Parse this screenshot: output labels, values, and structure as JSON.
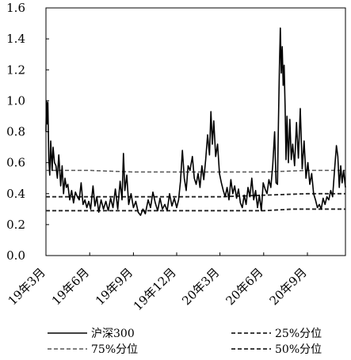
{
  "chart_data": {
    "type": "line",
    "title": "",
    "xlabel": "",
    "ylabel": "",
    "ylim": [
      0,
      1.6
    ],
    "yticks": [
      "0.0",
      "0.2",
      "0.4",
      "0.6",
      "0.8",
      "1.0",
      "1.2",
      "1.4",
      "1.6"
    ],
    "xlim": [
      "2019-03-01",
      "2020-11-20"
    ],
    "xticks": [
      {
        "label": "19年3月",
        "date": "2019-03-01"
      },
      {
        "label": "19年6月",
        "date": "2019-06-01"
      },
      {
        "label": "19年9月",
        "date": "2019-09-01"
      },
      {
        "label": "19年12月",
        "date": "2019-12-01"
      },
      {
        "label": "20年3月",
        "date": "2020-03-01"
      },
      {
        "label": "20年6月",
        "date": "2020-06-01"
      },
      {
        "label": "20年9月",
        "date": "2020-09-01"
      }
    ],
    "grid": false,
    "legend_placement": "bottom",
    "colors": {
      "axis": "#000000",
      "main": "#000000",
      "dashed": "#555555"
    },
    "series": [
      {
        "name": "沪深300",
        "style": "solid",
        "points": [
          [
            "2019-03-01",
            0.8
          ],
          [
            "2019-03-02",
            1.0
          ],
          [
            "2019-03-04",
            0.85
          ],
          [
            "2019-03-05",
            0.99
          ],
          [
            "2019-03-07",
            0.62
          ],
          [
            "2019-03-09",
            0.52
          ],
          [
            "2019-03-11",
            0.74
          ],
          [
            "2019-03-14",
            0.55
          ],
          [
            "2019-03-16",
            0.7
          ],
          [
            "2019-03-19",
            0.6
          ],
          [
            "2019-03-22",
            0.58
          ],
          [
            "2019-03-25",
            0.5
          ],
          [
            "2019-03-28",
            0.65
          ],
          [
            "2019-04-01",
            0.45
          ],
          [
            "2019-04-04",
            0.58
          ],
          [
            "2019-04-07",
            0.4
          ],
          [
            "2019-04-10",
            0.5
          ],
          [
            "2019-04-13",
            0.44
          ],
          [
            "2019-04-16",
            0.46
          ],
          [
            "2019-04-20",
            0.36
          ],
          [
            "2019-04-24",
            0.42
          ],
          [
            "2019-04-28",
            0.34
          ],
          [
            "2019-05-02",
            0.41
          ],
          [
            "2019-05-06",
            0.38
          ],
          [
            "2019-05-10",
            0.36
          ],
          [
            "2019-05-14",
            0.47
          ],
          [
            "2019-05-18",
            0.33
          ],
          [
            "2019-05-22",
            0.36
          ],
          [
            "2019-05-26",
            0.31
          ],
          [
            "2019-05-30",
            0.35
          ],
          [
            "2019-06-03",
            0.3
          ],
          [
            "2019-06-08",
            0.45
          ],
          [
            "2019-06-12",
            0.32
          ],
          [
            "2019-06-16",
            0.38
          ],
          [
            "2019-06-20",
            0.28
          ],
          [
            "2019-06-25",
            0.36
          ],
          [
            "2019-06-30",
            0.3
          ],
          [
            "2019-07-05",
            0.35
          ],
          [
            "2019-07-10",
            0.29
          ],
          [
            "2019-07-15",
            0.37
          ],
          [
            "2019-07-20",
            0.31
          ],
          [
            "2019-07-25",
            0.43
          ],
          [
            "2019-07-30",
            0.3
          ],
          [
            "2019-08-04",
            0.48
          ],
          [
            "2019-08-08",
            0.36
          ],
          [
            "2019-08-11",
            0.66
          ],
          [
            "2019-08-14",
            0.42
          ],
          [
            "2019-08-18",
            0.52
          ],
          [
            "2019-08-22",
            0.33
          ],
          [
            "2019-08-27",
            0.4
          ],
          [
            "2019-09-01",
            0.31
          ],
          [
            "2019-09-06",
            0.35
          ],
          [
            "2019-09-11",
            0.28
          ],
          [
            "2019-09-16",
            0.26
          ],
          [
            "2019-09-21",
            0.3
          ],
          [
            "2019-09-26",
            0.27
          ],
          [
            "2019-10-02",
            0.36
          ],
          [
            "2019-10-07",
            0.31
          ],
          [
            "2019-10-12",
            0.41
          ],
          [
            "2019-10-17",
            0.34
          ],
          [
            "2019-10-22",
            0.29
          ],
          [
            "2019-10-27",
            0.37
          ],
          [
            "2019-11-01",
            0.3
          ],
          [
            "2019-11-06",
            0.33
          ],
          [
            "2019-11-11",
            0.29
          ],
          [
            "2019-11-16",
            0.4
          ],
          [
            "2019-11-21",
            0.32
          ],
          [
            "2019-11-26",
            0.37
          ],
          [
            "2019-12-01",
            0.31
          ],
          [
            "2019-12-05",
            0.36
          ],
          [
            "2019-12-09",
            0.48
          ],
          [
            "2019-12-13",
            0.68
          ],
          [
            "2019-12-17",
            0.5
          ],
          [
            "2019-12-21",
            0.42
          ],
          [
            "2019-12-25",
            0.58
          ],
          [
            "2019-12-29",
            0.55
          ],
          [
            "2020-01-03",
            0.64
          ],
          [
            "2020-01-07",
            0.5
          ],
          [
            "2020-01-11",
            0.46
          ],
          [
            "2020-01-15",
            0.53
          ],
          [
            "2020-01-19",
            0.44
          ],
          [
            "2020-01-23",
            0.58
          ],
          [
            "2020-01-27",
            0.49
          ],
          [
            "2020-01-31",
            0.62
          ],
          [
            "2020-02-04",
            0.78
          ],
          [
            "2020-02-08",
            0.65
          ],
          [
            "2020-02-11",
            0.93
          ],
          [
            "2020-02-14",
            0.72
          ],
          [
            "2020-02-17",
            0.87
          ],
          [
            "2020-02-21",
            0.64
          ],
          [
            "2020-02-25",
            0.72
          ],
          [
            "2020-02-29",
            0.53
          ],
          [
            "2020-03-04",
            0.47
          ],
          [
            "2020-03-08",
            0.42
          ],
          [
            "2020-03-12",
            0.38
          ],
          [
            "2020-03-16",
            0.44
          ],
          [
            "2020-03-20",
            0.36
          ],
          [
            "2020-03-24",
            0.49
          ],
          [
            "2020-03-28",
            0.4
          ],
          [
            "2020-04-01",
            0.45
          ],
          [
            "2020-04-05",
            0.37
          ],
          [
            "2020-04-09",
            0.43
          ],
          [
            "2020-04-13",
            0.34
          ],
          [
            "2020-04-17",
            0.31
          ],
          [
            "2020-04-21",
            0.39
          ],
          [
            "2020-04-25",
            0.33
          ],
          [
            "2020-04-29",
            0.44
          ],
          [
            "2020-05-03",
            0.38
          ],
          [
            "2020-05-07",
            0.5
          ],
          [
            "2020-05-11",
            0.36
          ],
          [
            "2020-05-15",
            0.42
          ],
          [
            "2020-05-19",
            0.31
          ],
          [
            "2020-05-23",
            0.39
          ],
          [
            "2020-05-27",
            0.29
          ],
          [
            "2020-05-31",
            0.47
          ],
          [
            "2020-06-04",
            0.43
          ],
          [
            "2020-06-08",
            0.4
          ],
          [
            "2020-06-12",
            0.49
          ],
          [
            "2020-06-16",
            0.44
          ],
          [
            "2020-06-20",
            0.58
          ],
          [
            "2020-06-24",
            0.8
          ],
          [
            "2020-06-27",
            0.47
          ],
          [
            "2020-06-30",
            0.46
          ],
          [
            "2020-07-02",
            0.85
          ],
          [
            "2020-07-04",
            1.2
          ],
          [
            "2020-07-06",
            1.47
          ],
          [
            "2020-07-08",
            1.18
          ],
          [
            "2020-07-10",
            1.35
          ],
          [
            "2020-07-12",
            1.1
          ],
          [
            "2020-07-14",
            1.23
          ],
          [
            "2020-07-16",
            0.97
          ],
          [
            "2020-07-18",
            0.62
          ],
          [
            "2020-07-20",
            0.9
          ],
          [
            "2020-07-23",
            0.6
          ],
          [
            "2020-07-26",
            0.88
          ],
          [
            "2020-07-29",
            0.62
          ],
          [
            "2020-08-01",
            0.72
          ],
          [
            "2020-08-05",
            0.58
          ],
          [
            "2020-08-09",
            0.86
          ],
          [
            "2020-08-13",
            0.63
          ],
          [
            "2020-08-17",
            0.95
          ],
          [
            "2020-08-21",
            0.56
          ],
          [
            "2020-08-25",
            0.74
          ],
          [
            "2020-08-29",
            0.5
          ],
          [
            "2020-09-02",
            0.6
          ],
          [
            "2020-09-06",
            0.46
          ],
          [
            "2020-09-10",
            0.53
          ],
          [
            "2020-09-14",
            0.4
          ],
          [
            "2020-09-18",
            0.36
          ],
          [
            "2020-09-22",
            0.31
          ],
          [
            "2020-09-26",
            0.33
          ],
          [
            "2020-09-30",
            0.3
          ],
          [
            "2020-10-04",
            0.37
          ],
          [
            "2020-10-08",
            0.33
          ],
          [
            "2020-10-12",
            0.38
          ],
          [
            "2020-10-16",
            0.36
          ],
          [
            "2020-10-20",
            0.42
          ],
          [
            "2020-10-24",
            0.38
          ],
          [
            "2020-10-28",
            0.55
          ],
          [
            "2020-11-01",
            0.71
          ],
          [
            "2020-11-04",
            0.64
          ],
          [
            "2020-11-07",
            0.44
          ],
          [
            "2020-11-10",
            0.58
          ],
          [
            "2020-11-13",
            0.47
          ],
          [
            "2020-11-16",
            0.55
          ],
          [
            "2020-11-20",
            0.44
          ]
        ]
      },
      {
        "name": "25%分位",
        "style": "dashed-bold",
        "points": [
          [
            "2019-03-01",
            0.29
          ],
          [
            "2019-12-01",
            0.29
          ],
          [
            "2020-06-01",
            0.29
          ],
          [
            "2020-08-01",
            0.3
          ],
          [
            "2020-11-20",
            0.3
          ]
        ]
      },
      {
        "name": "75%分位",
        "style": "dashed-light",
        "points": [
          [
            "2019-03-01",
            0.55
          ],
          [
            "2019-06-01",
            0.55
          ],
          [
            "2019-09-01",
            0.54
          ],
          [
            "2019-12-01",
            0.54
          ],
          [
            "2020-03-01",
            0.54
          ],
          [
            "2020-06-01",
            0.54
          ],
          [
            "2020-09-01",
            0.55
          ],
          [
            "2020-11-20",
            0.55
          ]
        ]
      },
      {
        "name": "50%分位",
        "style": "dashed-bold",
        "points": [
          [
            "2019-03-01",
            0.38
          ],
          [
            "2019-06-01",
            0.38
          ],
          [
            "2019-12-01",
            0.38
          ],
          [
            "2020-03-01",
            0.38
          ],
          [
            "2020-06-01",
            0.39
          ],
          [
            "2020-09-01",
            0.4
          ],
          [
            "2020-11-20",
            0.4
          ]
        ]
      }
    ],
    "legend": [
      {
        "label": "沪深300",
        "series": 0
      },
      {
        "label": "25%分位",
        "series": 1
      },
      {
        "label": "75%分位",
        "series": 2
      },
      {
        "label": "50%分位",
        "series": 3
      }
    ]
  }
}
